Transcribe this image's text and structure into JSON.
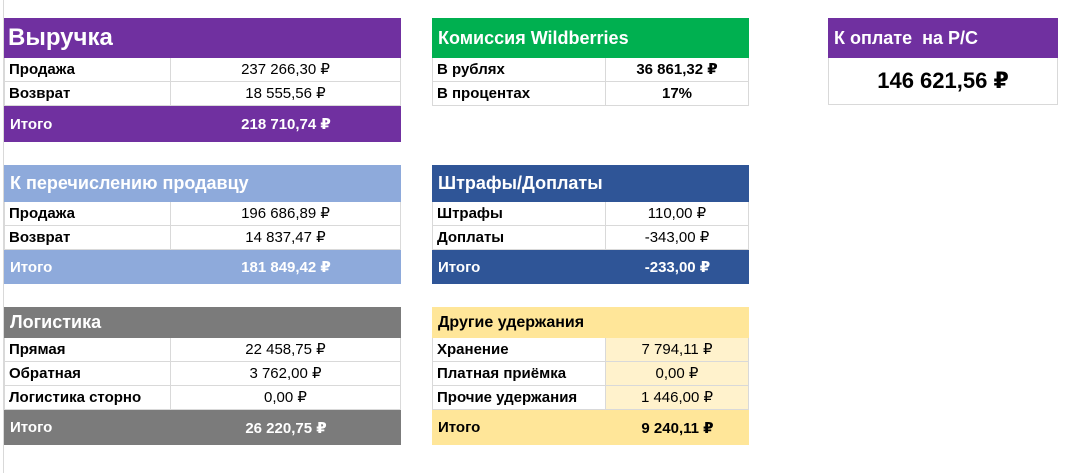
{
  "revenue": {
    "title": "Выручка",
    "rows": [
      {
        "label": "Продажа",
        "value": "237 266,30 ₽"
      },
      {
        "label": "Возврат",
        "value": "18 555,56 ₽"
      }
    ],
    "total": {
      "label": "Итого",
      "value": "218 710,74 ₽"
    }
  },
  "seller": {
    "title": "К перечислению продавцу",
    "rows": [
      {
        "label": "Продажа",
        "value": "196 686,89 ₽"
      },
      {
        "label": "Возврат",
        "value": "14 837,47 ₽"
      }
    ],
    "total": {
      "label": "Итого",
      "value": "181 849,42 ₽"
    }
  },
  "logistics": {
    "title": "Логистика",
    "rows": [
      {
        "label": "Прямая",
        "value": "22 458,75 ₽"
      },
      {
        "label": "Обратная",
        "value": "3 762,00 ₽"
      },
      {
        "label": "Логистика сторно",
        "value": "0,00 ₽"
      }
    ],
    "total": {
      "label": "Итого",
      "value": "26 220,75 ₽"
    }
  },
  "commission": {
    "title": "Комиссия Wildberries",
    "rows": [
      {
        "label": "В рублях",
        "value": "36 861,32 ₽"
      },
      {
        "label": "В процентах",
        "value": "17%"
      }
    ]
  },
  "fines": {
    "title": "Штрафы/Доплаты",
    "rows": [
      {
        "label": "Штрафы",
        "value": "110,00 ₽"
      },
      {
        "label": "Доплаты",
        "value": "-343,00 ₽"
      }
    ],
    "total": {
      "label": "Итого",
      "value": "-233,00 ₽"
    }
  },
  "other": {
    "title": "Другие удержания",
    "rows": [
      {
        "label": "Хранение",
        "value": "7 794,11 ₽"
      },
      {
        "label": "Платная приёмка",
        "value": "0,00 ₽"
      },
      {
        "label": "Прочие удержания",
        "value": "1 446,00 ₽"
      }
    ],
    "total": {
      "label": "Итого",
      "value": "9 240,11 ₽"
    }
  },
  "payout": {
    "title": "К оплате  на Р/С",
    "value": "146 621,56 ₽"
  },
  "colors": {
    "purple": "#7030a0",
    "light_blue": "#8eaadb",
    "gray": "#7b7b7b",
    "green": "#00b050",
    "dark_blue": "#2f5597",
    "light_yellow": "#ffe699",
    "pale_yellow": "#fff2cc"
  }
}
